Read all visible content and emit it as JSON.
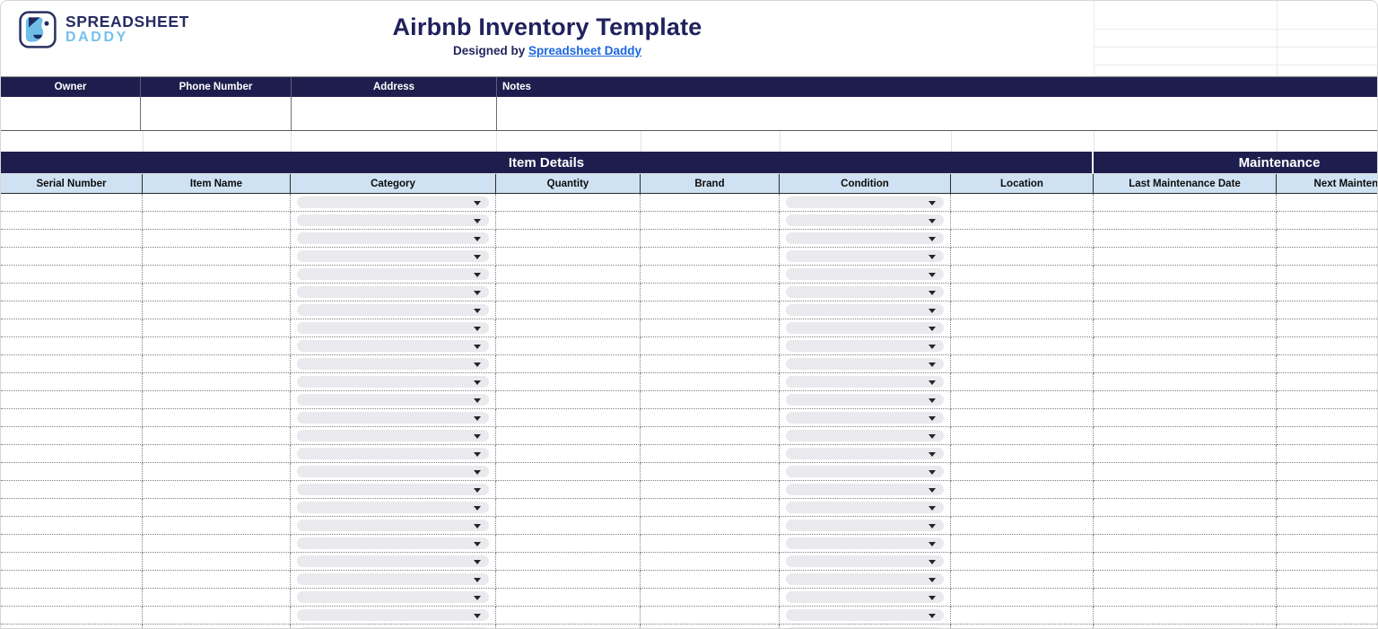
{
  "brand": {
    "logo_icon": "spreadsheet-daddy-dog-logo",
    "name_line1": "SPREADSHEET",
    "name_line2": "DADDY"
  },
  "header": {
    "title": "Airbnb Inventory Template",
    "designed_by_prefix": "Designed by ",
    "designed_by_link": "Spreadsheet Daddy"
  },
  "owner_table": {
    "headers": [
      "Owner",
      "Phone Number",
      "Address",
      "Notes"
    ],
    "values": [
      "",
      "",
      "",
      ""
    ]
  },
  "inventory_table": {
    "section_headers": {
      "item_details": "Item Details",
      "maintenance": "Maintenance"
    },
    "columns": [
      {
        "key": "serial-number",
        "label": "Serial Number",
        "dropdown": false
      },
      {
        "key": "item-name",
        "label": "Item Name",
        "dropdown": false
      },
      {
        "key": "category",
        "label": "Category",
        "dropdown": true
      },
      {
        "key": "quantity",
        "label": "Quantity",
        "dropdown": false
      },
      {
        "key": "brand",
        "label": "Brand",
        "dropdown": false
      },
      {
        "key": "condition",
        "label": "Condition",
        "dropdown": true
      },
      {
        "key": "location",
        "label": "Location",
        "dropdown": false
      },
      {
        "key": "last-maintenance-date",
        "label": "Last Maintenance Date",
        "dropdown": false
      },
      {
        "key": "next-maintenance-date",
        "label": "Next Maintenance Date",
        "dropdown": false
      }
    ],
    "visible_row_count": 25,
    "dropdown_selected_value": ""
  },
  "colors": {
    "navy_header": "#1e1e4e",
    "title_text": "#20215c",
    "subheader_blue": "#cfe2f3",
    "link_blue": "#1a66e0",
    "brand_light_blue": "#74c1ea",
    "dropdown_pill_grey": "#e9e9ee"
  }
}
